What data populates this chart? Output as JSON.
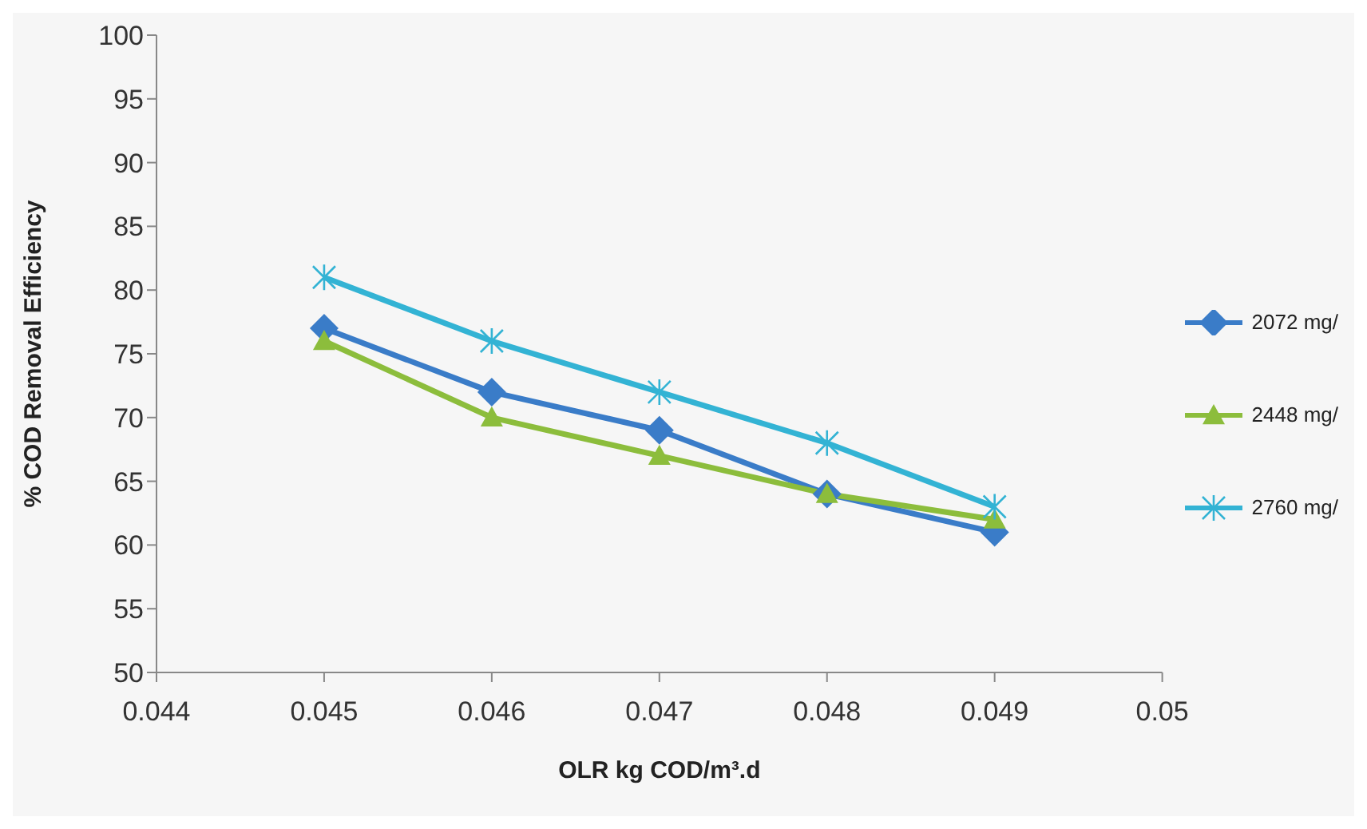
{
  "chart_data": {
    "type": "line",
    "xlabel": "OLR kg COD/m³.d",
    "ylabel": "% COD Removal Efficiency",
    "x": [
      0.045,
      0.046,
      0.047,
      0.048,
      0.049
    ],
    "series": [
      {
        "name": "2072 mg/",
        "color": "#3a7cc8",
        "values": [
          77,
          72,
          69,
          64,
          61
        ],
        "marker": "diamond"
      },
      {
        "name": "2448 mg/",
        "color": "#8cbd3c",
        "values": [
          76,
          70,
          67,
          64,
          62
        ],
        "marker": "triangle"
      },
      {
        "name": "2760 mg/",
        "color": "#33b3d4",
        "values": [
          81,
          76,
          72,
          68,
          63
        ],
        "marker": "cross"
      }
    ],
    "xlim": [
      0.044,
      0.05
    ],
    "xticks": [
      0.044,
      0.045,
      0.046,
      0.047,
      0.048,
      0.049,
      0.05
    ],
    "ylim": [
      50,
      100
    ],
    "yticks": [
      50,
      55,
      60,
      65,
      70,
      75,
      80,
      85,
      90,
      95,
      100
    ],
    "grid": false,
    "legend": "right",
    "line_style": "solid"
  }
}
